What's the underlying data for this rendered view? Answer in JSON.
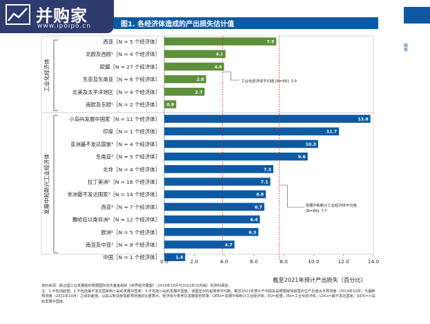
{
  "header": {
    "logo_text": "并购家",
    "logo_url": "www.ipoipo.cn",
    "title": "图1. 各经济体造成的产出损失估计值"
  },
  "side_mark": "图表",
  "chart_data": {
    "type": "bar",
    "orientation": "horizontal",
    "xlabel": "截至2021年预计产出损失（百分比）",
    "xlim": [
      0,
      14
    ],
    "xticks": [
      "0.0",
      "2.0",
      "4.0",
      "6.0",
      "8.0",
      "10.0",
      "12.0",
      "14.0"
    ],
    "groups": [
      {
        "name": "工业化经济体",
        "color": "#5e8f3a",
        "categories": [
          "西亚［N = 5 个经济体］",
          "北欧及西欧¹［N = 4 个经济体］",
          "欧盟［N = 27 个经济体］",
          "东亚及东南亚［N = 6 个经济体］",
          "北美及太平洋地区［N = 4 个经济体］",
          "南欧及东欧¹［N = 2 个经济体］"
        ],
        "values": [
          7.5,
          4.1,
          4.0,
          2.8,
          2.7,
          0.8
        ],
        "labels": [
          "7.5",
          "4.1",
          "4.0",
          "2.8",
          "2.7",
          "0.8"
        ],
        "average_label": "工业化经济体平均值 [N=48]: 3.9",
        "average": 3.9
      },
      {
        "name": "发展中和新兴工业经济体",
        "color": "#0d5aa2",
        "categories": [
          "小岛屿发展中国家［N = 11 个经济体］",
          "印度［N = 1 个经济体］",
          "亚洲最不发达国家³［N = 4 个经济体］",
          "东南亚²［N = 5 个经济体］",
          "北非［N = 4 个经济体］",
          "拉丁美洲²［N = 16 个经济体］",
          "非洲最不发达国家³［N = 14 个经济体］",
          "西亚²［N = 7 个经济体］",
          "撒哈拉以南非洲²［N = 12 个经济体］",
          "欧洲¹［N = 5 个经济体］",
          "南亚及中亚²［N = 8 个经济体］",
          "中国［N = 1 个经济体］"
        ],
        "values": [
          13.8,
          11.7,
          10.3,
          9.6,
          7.3,
          7.1,
          6.8,
          6.7,
          6.4,
          6.3,
          4.7,
          1.4
        ],
        "labels": [
          "13.8",
          "11.7",
          "10.3",
          "9.6",
          "7.3",
          "7.1",
          "6.8",
          "6.7",
          "6.4",
          "6.3",
          "4.7",
          "1.4"
        ],
        "average_label": "发展中和新兴工业经济体平均值 [N=88]: 7.7",
        "average": 7.7
      }
    ]
  },
  "notes": {
    "source": "资料来源：联合国工业发展组织根据国际货币基金组织《世界经济展望》（2019年10月与2021年10月版）的资料阐述。",
    "note": "注：1.不包括欧盟；2.不包括最不发达国家和小岛屿发展中国家；3.不包括小岛屿发展中国家。该图显示的是简单平均数。截至2021年预计产出损失是根据疫情前国内生产总值水平预测值（2019年10月）与最新预测值（2021年10月）之间的差值，以其占新冠疫情前预测值的比重表示。经济体分类参见发展报告附录。DEEs=发展中和新兴工业经济体；EU=欧盟；IEs=工业化经济体；LDCs=最不发达国家；SIDS=小岛屿发展中国家。"
  }
}
